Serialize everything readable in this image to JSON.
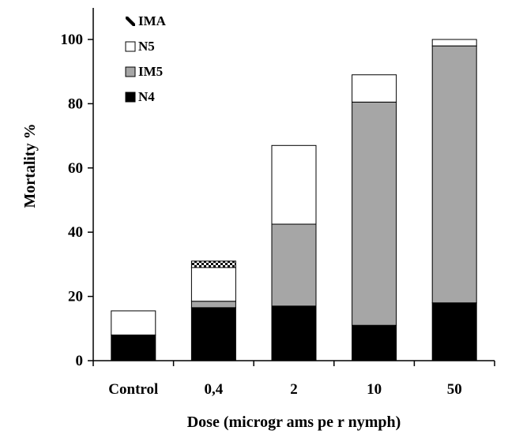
{
  "chart_data": {
    "type": "bar",
    "stacked": true,
    "categories": [
      "Control",
      "0,4",
      "2",
      "10",
      "50"
    ],
    "series": [
      {
        "name": "N4",
        "values": [
          8,
          16.5,
          17,
          11,
          18
        ],
        "color": "#000000",
        "pattern": "solid"
      },
      {
        "name": "IM5",
        "values": [
          0,
          2,
          25.5,
          69.5,
          80
        ],
        "color": "#a6a6a6",
        "pattern": "solid"
      },
      {
        "name": "N5",
        "values": [
          7.5,
          10.5,
          24.5,
          8.5,
          2
        ],
        "color": "#ffffff",
        "pattern": "solid"
      },
      {
        "name": "IMA",
        "values": [
          0,
          2,
          0,
          0,
          0
        ],
        "color": "#000000",
        "pattern": "checker"
      }
    ],
    "legend_order": [
      "IMA",
      "N5",
      "IM5",
      "N4"
    ],
    "legend_position": "top-left",
    "xlabel": "Dose (microgr ams pe r nymph)",
    "ylabel": "Mortality %",
    "ylim": [
      0,
      100
    ],
    "yticks": [
      0,
      20,
      40,
      60,
      80,
      100
    ],
    "grid": false
  }
}
